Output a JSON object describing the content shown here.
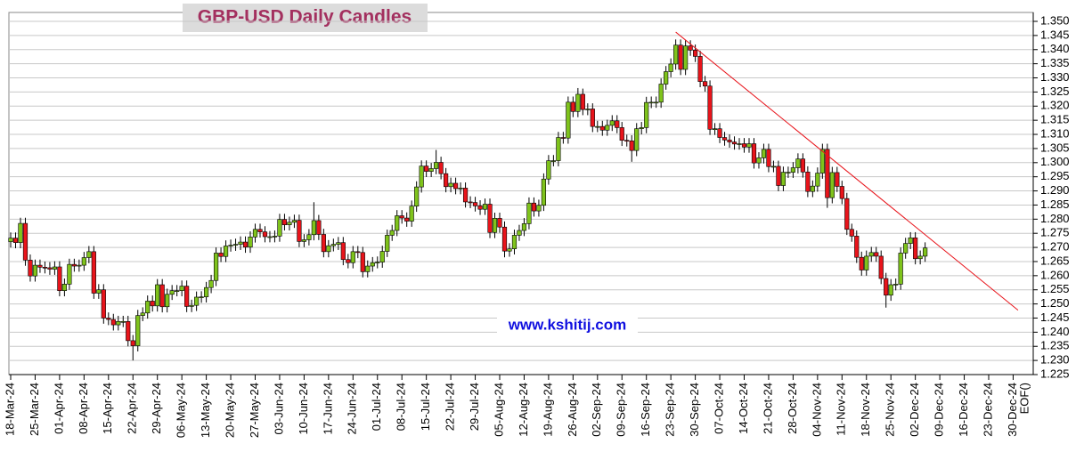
{
  "chart_data": {
    "type": "candlestick",
    "title": "GBP-USD Daily Candles",
    "watermark": "www.kshitij.com",
    "x": [
      "18-Mar-24",
      "19-Mar-24",
      "20-Mar-24",
      "21-Mar-24",
      "22-Mar-24",
      "25-Mar-24",
      "26-Mar-24",
      "27-Mar-24",
      "28-Mar-24",
      "29-Mar-24",
      "01-Apr-24",
      "02-Apr-24",
      "03-Apr-24",
      "04-Apr-24",
      "05-Apr-24",
      "08-Apr-24",
      "09-Apr-24",
      "10-Apr-24",
      "11-Apr-24",
      "12-Apr-24",
      "15-Apr-24",
      "16-Apr-24",
      "17-Apr-24",
      "18-Apr-24",
      "19-Apr-24",
      "22-Apr-24",
      "23-Apr-24",
      "24-Apr-24",
      "25-Apr-24",
      "26-Apr-24",
      "29-Apr-24",
      "30-Apr-24",
      "01-May-24",
      "02-May-24",
      "03-May-24",
      "06-May-24",
      "07-May-24",
      "08-May-24",
      "09-May-24",
      "10-May-24",
      "13-May-24",
      "14-May-24",
      "15-May-24",
      "16-May-24",
      "17-May-24",
      "20-May-24",
      "21-May-24",
      "22-May-24",
      "23-May-24",
      "24-May-24",
      "27-May-24",
      "28-May-24",
      "29-May-24",
      "30-May-24",
      "31-May-24",
      "03-Jun-24",
      "04-Jun-24",
      "05-Jun-24",
      "06-Jun-24",
      "07-Jun-24",
      "10-Jun-24",
      "11-Jun-24",
      "12-Jun-24",
      "13-Jun-24",
      "14-Jun-24",
      "17-Jun-24",
      "18-Jun-24",
      "19-Jun-24",
      "20-Jun-24",
      "21-Jun-24",
      "24-Jun-24",
      "25-Jun-24",
      "26-Jun-24",
      "27-Jun-24",
      "28-Jun-24",
      "01-Jul-24",
      "02-Jul-24",
      "03-Jul-24",
      "04-Jul-24",
      "05-Jul-24",
      "08-Jul-24",
      "09-Jul-24",
      "10-Jul-24",
      "11-Jul-24",
      "12-Jul-24",
      "15-Jul-24",
      "16-Jul-24",
      "17-Jul-24",
      "18-Jul-24",
      "19-Jul-24",
      "22-Jul-24",
      "23-Jul-24",
      "24-Jul-24",
      "25-Jul-24",
      "26-Jul-24",
      "29-Jul-24",
      "30-Jul-24",
      "31-Jul-24",
      "01-Aug-24",
      "02-Aug-24",
      "05-Aug-24",
      "06-Aug-24",
      "07-Aug-24",
      "08-Aug-24",
      "09-Aug-24",
      "12-Aug-24",
      "13-Aug-24",
      "14-Aug-24",
      "15-Aug-24",
      "16-Aug-24",
      "19-Aug-24",
      "20-Aug-24",
      "21-Aug-24",
      "22-Aug-24",
      "23-Aug-24",
      "26-Aug-24",
      "27-Aug-24",
      "28-Aug-24",
      "29-Aug-24",
      "30-Aug-24",
      "02-Sep-24",
      "03-Sep-24",
      "04-Sep-24",
      "05-Sep-24",
      "06-Sep-24",
      "09-Sep-24",
      "10-Sep-24",
      "11-Sep-24",
      "12-Sep-24",
      "13-Sep-24",
      "16-Sep-24",
      "17-Sep-24",
      "18-Sep-24",
      "19-Sep-24",
      "20-Sep-24",
      "23-Sep-24",
      "24-Sep-24",
      "25-Sep-24",
      "26-Sep-24",
      "27-Sep-24",
      "30-Sep-24",
      "01-Oct-24",
      "02-Oct-24",
      "03-Oct-24",
      "04-Oct-24",
      "07-Oct-24",
      "08-Oct-24",
      "09-Oct-24",
      "10-Oct-24",
      "11-Oct-24",
      "14-Oct-24",
      "15-Oct-24",
      "16-Oct-24",
      "17-Oct-24",
      "18-Oct-24",
      "21-Oct-24",
      "22-Oct-24",
      "23-Oct-24",
      "24-Oct-24",
      "25-Oct-24",
      "28-Oct-24",
      "29-Oct-24",
      "30-Oct-24",
      "31-Oct-24",
      "01-Nov-24",
      "04-Nov-24",
      "05-Nov-24",
      "06-Nov-24",
      "07-Nov-24",
      "08-Nov-24",
      "11-Nov-24",
      "12-Nov-24",
      "13-Nov-24",
      "14-Nov-24",
      "15-Nov-24",
      "18-Nov-24",
      "19-Nov-24",
      "20-Nov-24",
      "21-Nov-24",
      "22-Nov-24",
      "25-Nov-24",
      "26-Nov-24",
      "27-Nov-24",
      "28-Nov-24",
      "29-Nov-24",
      "02-Dec-24",
      "03-Dec-24",
      "04-Dec-24"
    ],
    "open": [
      1.272,
      1.2733,
      1.2717,
      1.2785,
      1.2655,
      1.2599,
      1.2637,
      1.263,
      1.2628,
      1.2623,
      1.2631,
      1.2547,
      1.257,
      1.264,
      1.2634,
      1.2637,
      1.2664,
      1.2685,
      1.2538,
      1.255,
      1.245,
      1.2445,
      1.2426,
      1.2438,
      1.2438,
      1.237,
      1.2352,
      1.2459,
      1.2468,
      1.251,
      1.2493,
      1.2568,
      1.249,
      1.2534,
      1.2547,
      1.2547,
      1.2563,
      1.2491,
      1.2495,
      1.2524,
      1.2525,
      1.2558,
      1.2583,
      1.268,
      1.2668,
      1.2705,
      1.2708,
      1.2711,
      1.2719,
      1.2701,
      1.2737,
      1.2764,
      1.2755,
      1.2738,
      1.2738,
      1.274,
      1.2799,
      1.278,
      1.2789,
      1.2796,
      1.2721,
      1.2727,
      1.2745,
      1.2795,
      1.2746,
      1.2685,
      1.2706,
      1.2711,
      1.2717,
      1.2657,
      1.2646,
      1.2685,
      1.2682,
      1.2614,
      1.2634,
      1.2646,
      1.2648,
      1.2686,
      1.2743,
      1.276,
      1.2812,
      1.2804,
      1.2793,
      1.2846,
      1.2914,
      1.2988,
      1.2969,
      1.2979,
      1.3001,
      1.2961,
      1.2915,
      1.2927,
      1.2908,
      1.291,
      1.2861,
      1.2859,
      1.2847,
      1.2835,
      1.2853,
      1.2753,
      1.2803,
      1.2772,
      1.2687,
      1.2695,
      1.2743,
      1.276,
      1.2784,
      1.2857,
      1.2829,
      1.2849,
      1.2942,
      1.3007,
      1.3007,
      1.3089,
      1.3087,
      1.3214,
      1.3181,
      1.3242,
      1.3188,
      1.319,
      1.3128,
      1.3128,
      1.3115,
      1.3132,
      1.3148,
      1.3124,
      1.3079,
      1.3077,
      1.3043,
      1.312,
      1.3124,
      1.3213,
      1.3214,
      1.3214,
      1.3278,
      1.3322,
      1.3349,
      1.3416,
      1.333,
      1.3413,
      1.3398,
      1.3376,
      1.3287,
      1.3271,
      1.3118,
      1.312,
      1.3089,
      1.308,
      1.3073,
      1.3066,
      1.3067,
      1.3055,
      1.3067,
      1.2999,
      1.3017,
      1.3047,
      1.2986,
      1.2987,
      1.2919,
      1.2966,
      1.2966,
      1.2982,
      1.3013,
      1.2967,
      1.2898,
      1.2917,
      1.2963,
      1.3047,
      1.2876,
      1.2965,
      1.2916,
      1.2873,
      1.2764,
      1.274,
      1.2665,
      1.262,
      1.2669,
      1.2682,
      1.2669,
      1.259,
      1.2531,
      1.2568,
      1.257,
      1.268,
      1.2714,
      1.2734,
      1.266,
      1.2669
    ],
    "high": [
      1.2753,
      1.2753,
      1.2805,
      1.2805,
      1.2675,
      1.2657,
      1.2657,
      1.265,
      1.2648,
      1.2651,
      1.2651,
      1.259,
      1.266,
      1.266,
      1.2657,
      1.2684,
      1.2705,
      1.2705,
      1.257,
      1.257,
      1.247,
      1.2465,
      1.2458,
      1.2458,
      1.2458,
      1.239,
      1.2479,
      1.2488,
      1.253,
      1.253,
      1.2588,
      1.2588,
      1.2554,
      1.2567,
      1.2567,
      1.2583,
      1.2583,
      1.2515,
      1.2544,
      1.2545,
      1.2578,
      1.2603,
      1.27,
      1.27,
      1.2725,
      1.2728,
      1.2731,
      1.2739,
      1.2739,
      1.2757,
      1.2784,
      1.2784,
      1.2775,
      1.2758,
      1.276,
      1.2819,
      1.2819,
      1.2809,
      1.2816,
      1.2816,
      1.2747,
      1.2765,
      1.286,
      1.2815,
      1.2766,
      1.2726,
      1.2731,
      1.2737,
      1.2737,
      1.2677,
      1.2705,
      1.2705,
      1.2702,
      1.2654,
      1.2666,
      1.2668,
      1.2706,
      1.2763,
      1.278,
      1.2832,
      1.2832,
      1.2824,
      1.2866,
      1.2934,
      1.3008,
      1.3008,
      1.2999,
      1.3045,
      1.3021,
      1.2981,
      1.2947,
      1.2947,
      1.293,
      1.293,
      1.2881,
      1.2879,
      1.2867,
      1.2873,
      1.2873,
      1.2823,
      1.2823,
      1.2792,
      1.2715,
      1.2763,
      1.278,
      1.2804,
      1.2877,
      1.2877,
      1.2869,
      1.2962,
      1.3027,
      1.3027,
      1.3109,
      1.3109,
      1.3234,
      1.3234,
      1.3264,
      1.3262,
      1.321,
      1.321,
      1.3148,
      1.3148,
      1.3152,
      1.3168,
      1.3168,
      1.3144,
      1.3099,
      1.3097,
      1.314,
      1.3144,
      1.3233,
      1.3234,
      1.3234,
      1.3298,
      1.3342,
      1.3369,
      1.3436,
      1.3436,
      1.3433,
      1.3433,
      1.3418,
      1.3396,
      1.3307,
      1.3291,
      1.314,
      1.314,
      1.3109,
      1.31,
      1.3093,
      1.3087,
      1.3087,
      1.3087,
      1.3087,
      1.3037,
      1.3067,
      1.3067,
      1.3007,
      1.3007,
      1.2986,
      1.2986,
      1.3002,
      1.3033,
      1.3033,
      1.2987,
      1.2937,
      1.2983,
      1.3067,
      1.3067,
      1.2985,
      1.2985,
      1.2936,
      1.2893,
      1.2784,
      1.276,
      1.2685,
      1.2689,
      1.2702,
      1.2702,
      1.2689,
      1.261,
      1.2588,
      1.259,
      1.27,
      1.2734,
      1.2754,
      1.2754,
      1.2689,
      1.2718
    ],
    "low": [
      1.27,
      1.2697,
      1.2697,
      1.2635,
      1.2579,
      1.2579,
      1.261,
      1.2608,
      1.2603,
      1.2603,
      1.2527,
      1.2527,
      1.255,
      1.2614,
      1.2614,
      1.2617,
      1.2644,
      1.2518,
      1.2518,
      1.243,
      1.2425,
      1.2406,
      1.2406,
      1.2418,
      1.235,
      1.23,
      1.2332,
      1.2439,
      1.2448,
      1.2473,
      1.2473,
      1.247,
      1.247,
      1.2514,
      1.2527,
      1.2527,
      1.2471,
      1.2471,
      1.2475,
      1.2504,
      1.2505,
      1.2538,
      1.2563,
      1.2648,
      1.2648,
      1.2685,
      1.2688,
      1.2691,
      1.2681,
      1.2681,
      1.2717,
      1.2735,
      1.2718,
      1.2718,
      1.2718,
      1.272,
      1.276,
      1.276,
      1.2769,
      1.2701,
      1.2701,
      1.2707,
      1.2725,
      1.2726,
      1.2665,
      1.2665,
      1.2686,
      1.2691,
      1.2637,
      1.2626,
      1.2626,
      1.2662,
      1.2594,
      1.2594,
      1.2614,
      1.2626,
      1.2628,
      1.2666,
      1.2723,
      1.274,
      1.2784,
      1.2773,
      1.2773,
      1.2826,
      1.2894,
      1.2949,
      1.2949,
      1.2959,
      1.2941,
      1.2895,
      1.2895,
      1.2888,
      1.2888,
      1.2841,
      1.2839,
      1.2827,
      1.2815,
      1.2815,
      1.2733,
      1.2733,
      1.2752,
      1.2665,
      1.2667,
      1.2675,
      1.2723,
      1.274,
      1.2764,
      1.2809,
      1.2809,
      1.2829,
      1.2922,
      1.2987,
      1.2987,
      1.3067,
      1.3067,
      1.3161,
      1.3161,
      1.3168,
      1.3168,
      1.3108,
      1.3108,
      1.3095,
      1.3095,
      1.3112,
      1.3104,
      1.3059,
      1.3057,
      1.3003,
      1.3023,
      1.31,
      1.3104,
      1.3193,
      1.3194,
      1.3194,
      1.3258,
      1.3302,
      1.3329,
      1.331,
      1.331,
      1.3378,
      1.3356,
      1.3267,
      1.3251,
      1.3098,
      1.3098,
      1.3069,
      1.306,
      1.3053,
      1.3046,
      1.3046,
      1.3035,
      1.3035,
      1.2979,
      1.2979,
      1.2997,
      1.2966,
      1.2966,
      1.2899,
      1.2899,
      1.2946,
      1.2946,
      1.2962,
      1.2947,
      1.2878,
      1.2878,
      1.2897,
      1.2943,
      1.284,
      1.2856,
      1.2896,
      1.2853,
      1.2744,
      1.272,
      1.2645,
      1.26,
      1.26,
      1.2649,
      1.2649,
      1.257,
      1.2487,
      1.2511,
      1.2548,
      1.255,
      1.266,
      1.2694,
      1.264,
      1.264,
      1.2649
    ],
    "close": [
      1.2733,
      1.2717,
      1.2785,
      1.2655,
      1.2599,
      1.2637,
      1.263,
      1.2628,
      1.2623,
      1.2631,
      1.2547,
      1.257,
      1.264,
      1.2634,
      1.2637,
      1.2664,
      1.2685,
      1.2538,
      1.255,
      1.245,
      1.2445,
      1.2426,
      1.2438,
      1.2438,
      1.237,
      1.2352,
      1.2459,
      1.2468,
      1.251,
      1.2493,
      1.2568,
      1.249,
      1.2534,
      1.2547,
      1.2547,
      1.2563,
      1.2491,
      1.2495,
      1.2524,
      1.2525,
      1.2558,
      1.2583,
      1.268,
      1.2668,
      1.2705,
      1.2708,
      1.2711,
      1.2719,
      1.2701,
      1.2737,
      1.2764,
      1.2755,
      1.2738,
      1.2738,
      1.274,
      1.2799,
      1.278,
      1.2789,
      1.2796,
      1.2721,
      1.2727,
      1.2745,
      1.2795,
      1.2746,
      1.2685,
      1.2706,
      1.2711,
      1.2717,
      1.2657,
      1.2646,
      1.2685,
      1.2682,
      1.2614,
      1.2634,
      1.2646,
      1.2648,
      1.2686,
      1.2743,
      1.276,
      1.2812,
      1.2804,
      1.2793,
      1.2846,
      1.2914,
      1.2988,
      1.2969,
      1.2979,
      1.3001,
      1.2961,
      1.2915,
      1.2927,
      1.2908,
      1.291,
      1.2861,
      1.2859,
      1.2847,
      1.2835,
      1.2853,
      1.2753,
      1.2803,
      1.2772,
      1.2687,
      1.2695,
      1.2743,
      1.276,
      1.2784,
      1.2857,
      1.2829,
      1.2849,
      1.2942,
      1.3007,
      1.3007,
      1.3089,
      1.3087,
      1.3214,
      1.3181,
      1.3242,
      1.3188,
      1.319,
      1.3128,
      1.3128,
      1.3115,
      1.3132,
      1.3148,
      1.3124,
      1.3079,
      1.3077,
      1.3043,
      1.312,
      1.3124,
      1.3213,
      1.3214,
      1.3214,
      1.3278,
      1.3322,
      1.3349,
      1.3416,
      1.333,
      1.3413,
      1.3398,
      1.3376,
      1.3287,
      1.3271,
      1.3118,
      1.312,
      1.3089,
      1.308,
      1.3073,
      1.3066,
      1.3067,
      1.3055,
      1.3067,
      1.2999,
      1.3017,
      1.3047,
      1.2986,
      1.2987,
      1.2919,
      1.2966,
      1.2966,
      1.2982,
      1.3013,
      1.2967,
      1.2898,
      1.2917,
      1.2963,
      1.3047,
      1.2876,
      1.2965,
      1.2916,
      1.2873,
      1.2764,
      1.274,
      1.2665,
      1.262,
      1.2669,
      1.2682,
      1.2669,
      1.259,
      1.2531,
      1.2568,
      1.257,
      1.268,
      1.2714,
      1.2734,
      1.266,
      1.2669,
      1.2698
    ],
    "up_color": "#7fc31c",
    "down_color": "#e8141b",
    "trendline": {
      "x": [
        "24-Sep-24",
        "31-Dec-24"
      ],
      "y": [
        1.3462,
        1.2478
      ],
      "color": "#e8141b"
    },
    "xticks": [
      "18-Mar-24",
      "25-Mar-24",
      "01-Apr-24",
      "08-Apr-24",
      "15-Apr-24",
      "22-Apr-24",
      "29-Apr-24",
      "06-May-24",
      "13-May-24",
      "20-May-24",
      "27-May-24",
      "03-Jun-24",
      "10-Jun-24",
      "17-Jun-24",
      "24-Jun-24",
      "01-Jul-24",
      "08-Jul-24",
      "15-Jul-24",
      "22-Jul-24",
      "29-Jul-24",
      "05-Aug-24",
      "12-Aug-24",
      "19-Aug-24",
      "26-Aug-24",
      "02-Sep-24",
      "09-Sep-24",
      "16-Sep-24",
      "23-Sep-24",
      "30-Sep-24",
      "07-Oct-24",
      "14-Oct-24",
      "21-Oct-24",
      "28-Oct-24",
      "04-Nov-24",
      "11-Nov-24",
      "18-Nov-24",
      "25-Nov-24",
      "02-Dec-24",
      "09-Dec-24",
      "16-Dec-24",
      "23-Dec-24",
      "30-Dec-24",
      "EOF()"
    ],
    "ylim": [
      1.225,
      1.35
    ],
    "yticks": [
      1.225,
      {
        "value": 1.23,
        "label": "1.230"
      },
      1.235,
      {
        "value": 1.24,
        "label": "1.240"
      },
      1.245,
      {
        "value": 1.25,
        "label": "1.250"
      },
      1.255,
      {
        "value": 1.26,
        "label": "1.260"
      },
      1.265,
      {
        "value": 1.27,
        "label": "1.270"
      },
      1.275,
      {
        "value": 1.28,
        "label": "1.280"
      },
      1.285,
      {
        "value": 1.29,
        "label": "1.290"
      },
      1.295,
      {
        "value": 1.3,
        "label": "1.300"
      },
      1.305,
      {
        "value": 1.31,
        "label": "1.310"
      },
      1.315,
      {
        "value": 1.32,
        "label": "1.320"
      },
      1.325,
      {
        "value": 1.33,
        "label": "1.330"
      },
      1.335,
      {
        "value": 1.34,
        "label": "1.340"
      },
      1.345,
      {
        "value": 1.35,
        "label": "1.350"
      }
    ],
    "grid": true
  }
}
